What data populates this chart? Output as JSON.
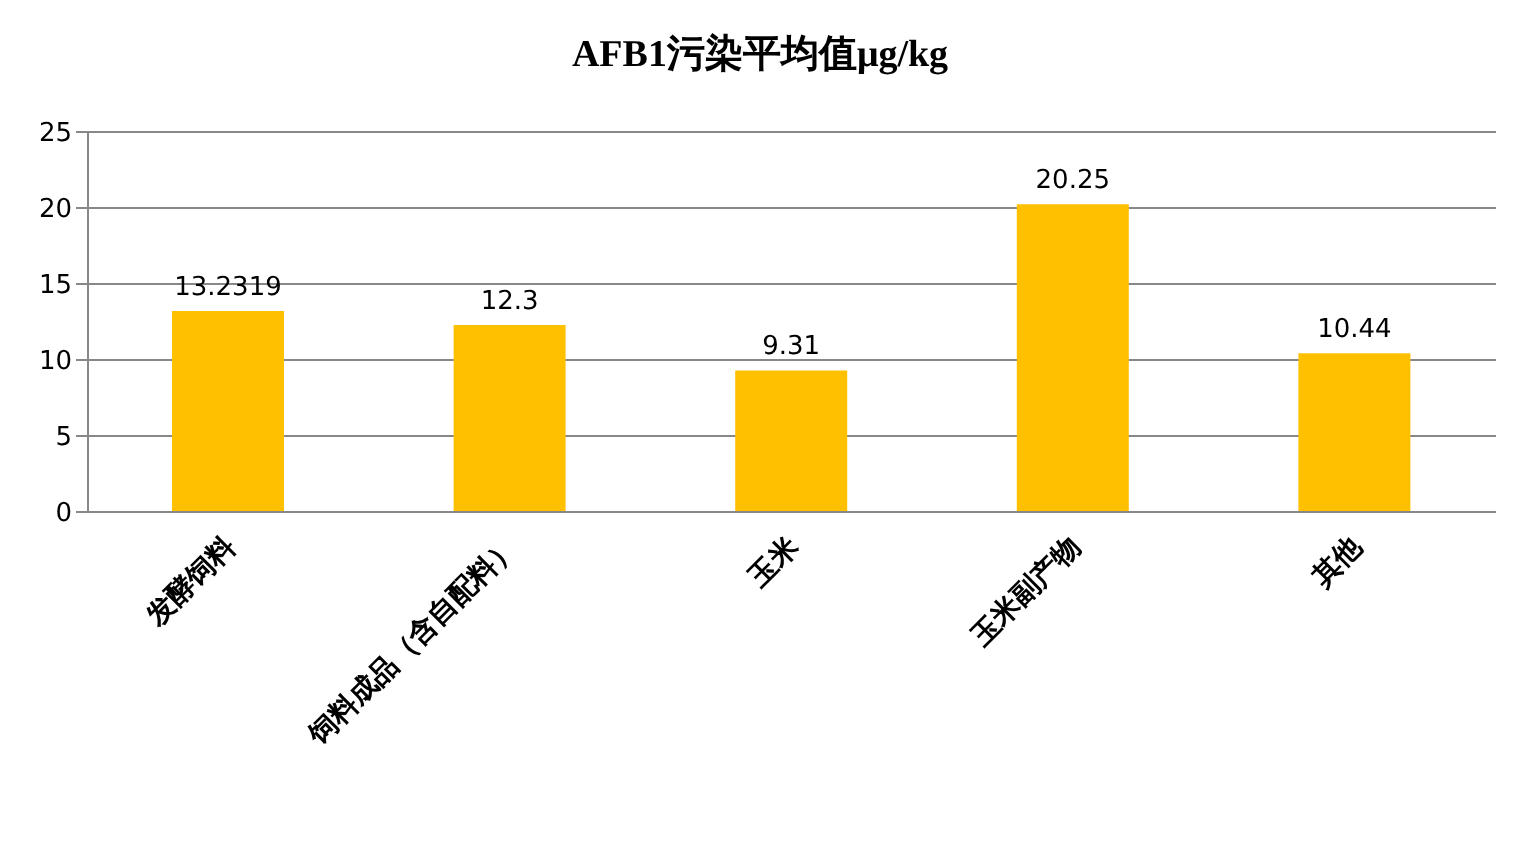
{
  "chart_data": {
    "type": "bar",
    "title": "AFB1污染平均值μg/kg",
    "categories": [
      "发酵饲料",
      "饲料成品（含自配料）",
      "玉米",
      "玉米副产物",
      "其他"
    ],
    "values": [
      13.2319,
      12.3,
      9.31,
      20.25,
      10.44
    ],
    "color": "#ffc000",
    "ylim": [
      0,
      25
    ],
    "yticks": [
      0,
      5,
      10,
      15,
      20,
      25
    ],
    "grid": "y",
    "data_labels": true
  }
}
